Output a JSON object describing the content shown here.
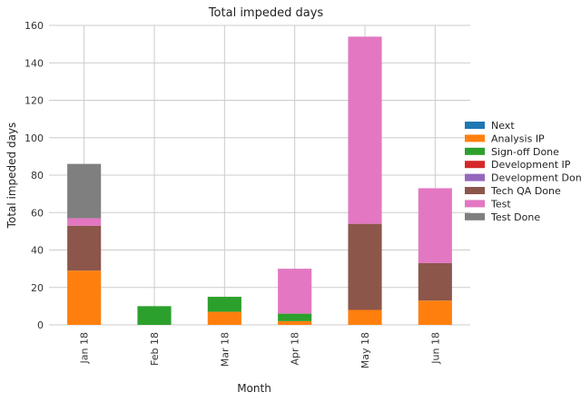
{
  "chart_data": {
    "type": "bar",
    "stacked": true,
    "title": "Total impeded days",
    "xlabel": "Month",
    "ylabel": "Total impeded days",
    "ylim": [
      0,
      160
    ],
    "yticks": [
      0,
      20,
      40,
      60,
      80,
      100,
      120,
      140,
      160
    ],
    "grid": true,
    "legend_position": "right",
    "categories": [
      "Jan 18",
      "Feb 18",
      "Mar 18",
      "Apr 18",
      "May 18",
      "Jun 18"
    ],
    "series": [
      {
        "name": "Next",
        "color": "#1f77b4",
        "values": [
          0,
          0,
          0,
          0,
          0,
          0
        ]
      },
      {
        "name": "Analysis IP",
        "color": "#ff7f0e",
        "values": [
          29,
          0,
          7,
          2,
          8,
          13
        ]
      },
      {
        "name": "Sign-off Done",
        "color": "#2ca02c",
        "values": [
          0,
          10,
          8,
          4,
          0,
          0
        ]
      },
      {
        "name": "Development IP",
        "color": "#d62728",
        "values": [
          0,
          0,
          0,
          0,
          0,
          0
        ]
      },
      {
        "name": "Development Done",
        "color": "#9467bd",
        "values": [
          0,
          0,
          0,
          0,
          0,
          0
        ]
      },
      {
        "name": "Tech QA Done",
        "color": "#8c564b",
        "values": [
          24,
          0,
          0,
          0,
          46,
          20
        ]
      },
      {
        "name": "Test",
        "color": "#e377c2",
        "values": [
          4,
          0,
          0,
          24,
          100,
          40
        ]
      },
      {
        "name": "Test Done",
        "color": "#7f7f7f",
        "values": [
          29,
          0,
          0,
          0,
          0,
          0
        ]
      }
    ]
  }
}
